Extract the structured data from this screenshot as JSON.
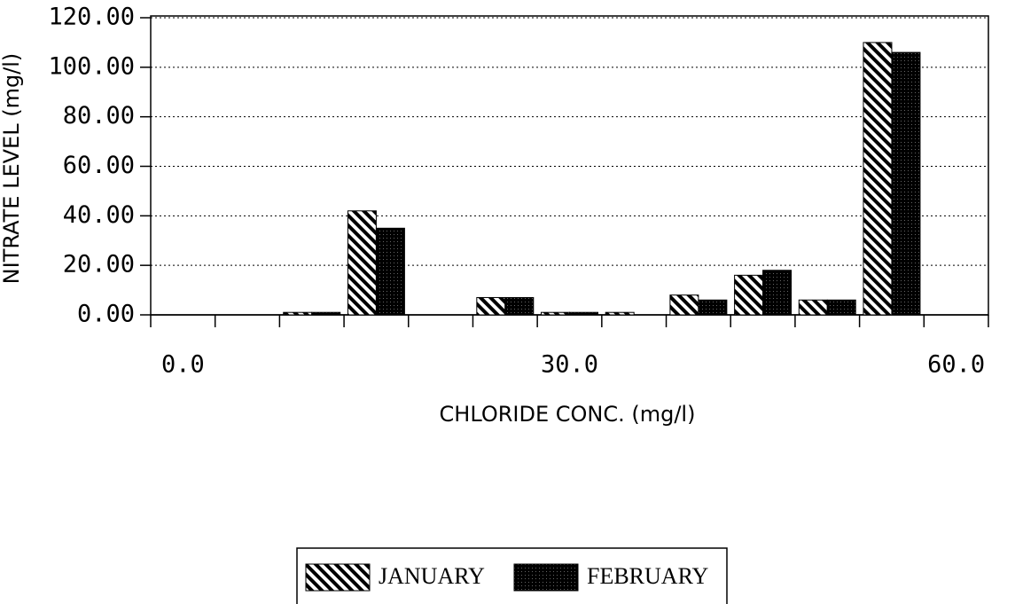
{
  "chart_data": {
    "type": "bar",
    "x_label": "CHLORIDE CONC. (mg/l)",
    "y_label": "NITRATE LEVEL (mg/l)",
    "categories": [
      "0.0",
      null,
      null,
      null,
      null,
      null,
      "30.0",
      null,
      null,
      null,
      null,
      null,
      "60.0"
    ],
    "series": [
      {
        "name": "JANUARY",
        "color": "hatch",
        "values": [
          0,
          0,
          1,
          42,
          0,
          7,
          1,
          1,
          8,
          16,
          6,
          110,
          0
        ]
      },
      {
        "name": "FEBRUARY",
        "color": "dark",
        "values": [
          0,
          0,
          1,
          35,
          0,
          7,
          1,
          0,
          6,
          18,
          6,
          106,
          0
        ]
      }
    ],
    "ylim": [
      0,
      120
    ],
    "yticks": [
      {
        "value": 0,
        "label": "0.00"
      },
      {
        "value": 20,
        "label": "20.00"
      },
      {
        "value": 40,
        "label": "40.00"
      },
      {
        "value": 60,
        "label": "60.00"
      },
      {
        "value": 80,
        "label": "80.00"
      },
      {
        "value": 100,
        "label": "100.00"
      },
      {
        "value": 120,
        "label": "120.00"
      }
    ],
    "grid": true
  }
}
